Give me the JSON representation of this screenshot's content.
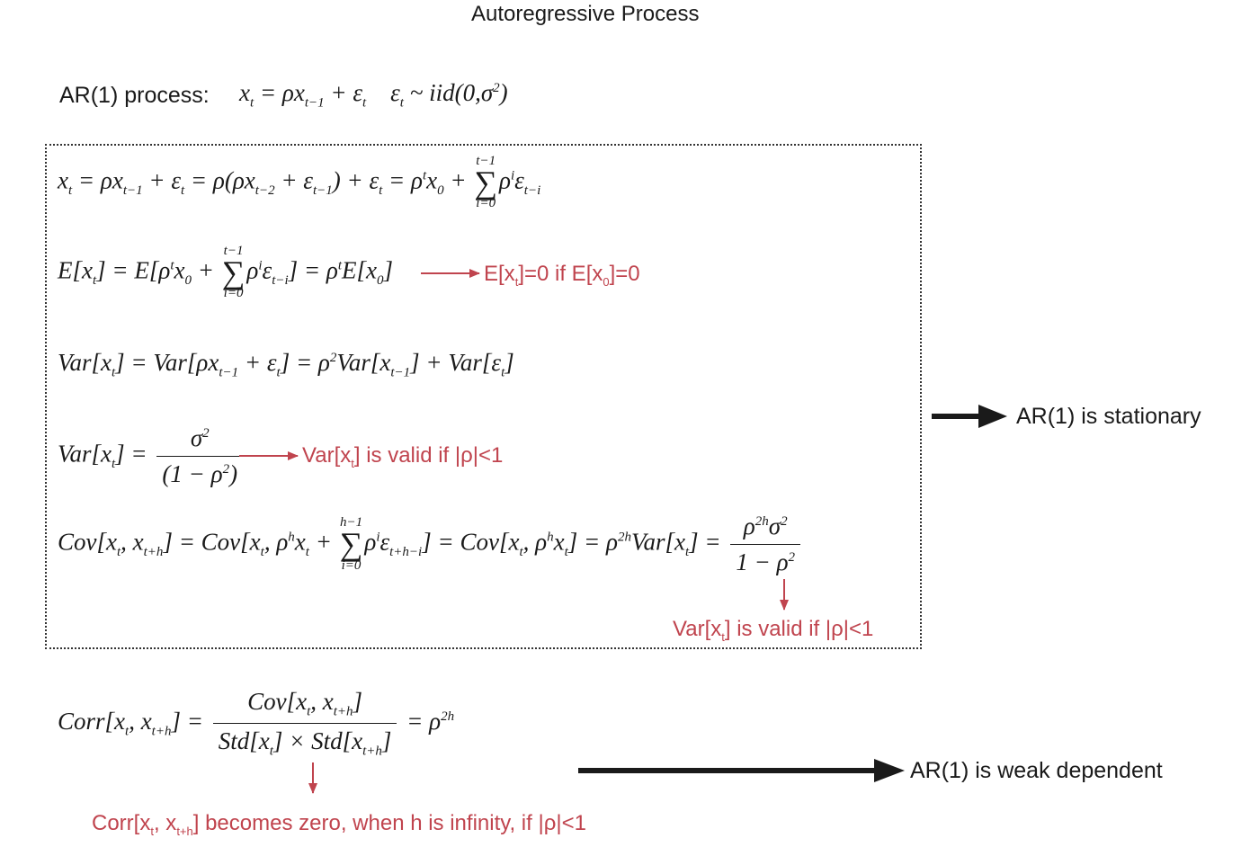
{
  "title": "Autoregressive Process",
  "process": {
    "label": "AR(1) process:",
    "equation": "x_t = ρx_{t−1} + ε_t   ε_t ~ iid(0, σ²)"
  },
  "box": {
    "expansion": {
      "lhs": "x",
      "text": "x_t = ρx_{t−1} + ε_t = ρ(ρx_{t−2} + ε_{t−1}) + ε_t = ρ^t x_0 + Σ_{i=0}^{t−1} ρ^i ε_{t−i}"
    },
    "expectation": {
      "text": "E[x_t] = E[ρ^t x_0 + Σ_{i=0}^{t−1} ρ^i ε_{t−i}] = ρ^t E[x_0]",
      "note": "E[x_t]=0 if E[x_0]=0"
    },
    "variance_recursion": {
      "text": "Var[x_t] = Var[ρx_{t−1} + ε_t] = ρ²Var[x_{t−1}] + Var[ε_t]"
    },
    "variance": {
      "text": "Var[x_t] = σ² / (1 − ρ²)",
      "note": "Var[x_t] is valid if |ρ|<1"
    },
    "covariance": {
      "text": "Cov[x_t, x_{t+h}] = Cov[x_t, ρ^h x_t + Σ_{i=0}^{h−1} ρ^i ε_{t+h−i}] = Cov[x_t, ρ^h x_t] = ρ^{2h}Var[x_t] = ρ^{2h}σ² / (1 − ρ²)",
      "note": "Var[x_t] is valid if |ρ|<1"
    }
  },
  "stationary_result": "AR(1) is stationary",
  "correlation": {
    "text": "Corr[x_t, x_{t+h}] = Cov[x_t, x_{t+h}] / (Std[x_t] × Std[x_{t+h}]) = ρ^{2h}",
    "note": "Corr[x_t, x_{t+h}] becomes zero, when h is infinity, if |ρ|<1"
  },
  "weak_dependent_result": "AR(1) is weak dependent",
  "colors": {
    "text": "#1a1a1a",
    "note": "#c0444e",
    "arrow": "#1a1a1a"
  }
}
